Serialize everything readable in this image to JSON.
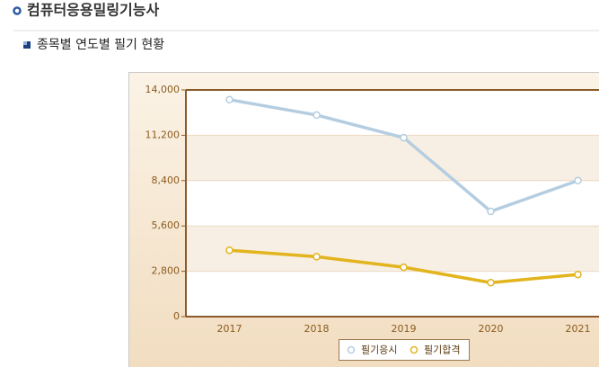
{
  "page": {
    "title": "컴퓨터응용밀링기능사",
    "section_title": "종목별 연도별 필기 현황"
  },
  "chart_data": {
    "type": "line",
    "categories": [
      "2017",
      "2018",
      "2019",
      "2020",
      "2021"
    ],
    "series": [
      {
        "name": "필기응시",
        "color": "#b4cde0",
        "values": [
          13400,
          12450,
          11050,
          6500,
          8400
        ]
      },
      {
        "name": "필기합격",
        "color": "#e2b41e",
        "values": [
          4100,
          3700,
          3050,
          2100,
          2600
        ]
      }
    ],
    "ylim": [
      0,
      14000
    ],
    "yticks": [
      0,
      {
        "value": 2800,
        "label": "2,800"
      },
      {
        "value": 5600,
        "label": "5,600"
      },
      {
        "value": 8400,
        "label": "8,400"
      },
      {
        "value": 11200,
        "label": "11,200"
      },
      {
        "value": 14000,
        "label": "14,000"
      }
    ],
    "grid": true,
    "legend": "bottom"
  }
}
